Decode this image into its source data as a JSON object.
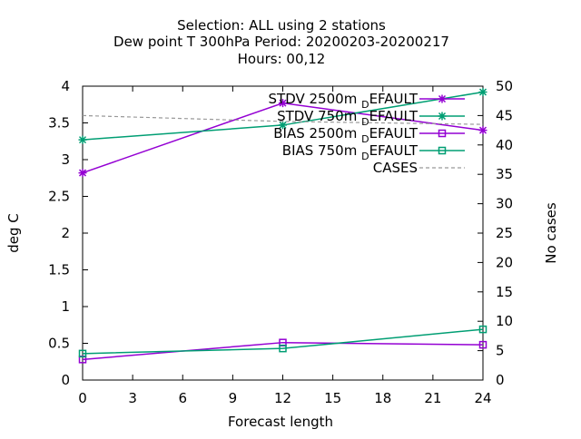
{
  "chart_data": {
    "type": "line",
    "title_lines": [
      "Selection: ALL using     2 stations",
      "Dew point T 300hPa   Period: 20200203-20200217",
      "Hours:  00,12"
    ],
    "xlabel": "Forecast length",
    "ylabel": "deg C",
    "y2label": "No cases",
    "xlim": [
      0,
      24
    ],
    "ylim": [
      0,
      4
    ],
    "y2lim": [
      0,
      50
    ],
    "xticks": [
      "0",
      "3",
      "6",
      "9",
      "12",
      "15",
      "18",
      "21",
      "24"
    ],
    "yticks": [
      "0",
      "0.5",
      "1",
      "1.5",
      "2",
      "2.5",
      "3",
      "3.5",
      "4"
    ],
    "y2ticks": [
      "0",
      "5",
      "10",
      "15",
      "20",
      "25",
      "30",
      "35",
      "40",
      "45",
      "50"
    ],
    "grid": false,
    "legend_position": "top-right",
    "series": [
      {
        "name": "STDV 2500m",
        "name_sub": "D",
        "name_suffix": "EFAULT",
        "axis": "y",
        "color": "#9400d3",
        "marker": "star",
        "x": [
          0,
          12,
          24
        ],
        "y": [
          2.82,
          3.77,
          3.4
        ]
      },
      {
        "name": "STDV 750m",
        "name_sub": "D",
        "name_suffix": "EFAULT",
        "axis": "y",
        "color": "#009e73",
        "marker": "star",
        "x": [
          0,
          12,
          24
        ],
        "y": [
          3.27,
          3.47,
          3.92
        ]
      },
      {
        "name": "BIAS 2500m",
        "name_sub": "D",
        "name_suffix": "EFAULT",
        "axis": "y",
        "color": "#9400d3",
        "marker": "square",
        "x": [
          0,
          12,
          24
        ],
        "y": [
          0.28,
          0.51,
          0.48
        ]
      },
      {
        "name": "BIAS 750m",
        "name_sub": "D",
        "name_suffix": "EFAULT",
        "axis": "y",
        "color": "#009e73",
        "marker": "square",
        "x": [
          0,
          12,
          24
        ],
        "y": [
          0.36,
          0.43,
          0.69
        ]
      },
      {
        "name": "CASES",
        "name_sub": "",
        "name_suffix": "",
        "axis": "y2",
        "color": "#999999",
        "marker": "none",
        "dashed": true,
        "x": [
          0,
          12,
          24
        ],
        "y": [
          45,
          44,
          43.5
        ]
      }
    ]
  }
}
